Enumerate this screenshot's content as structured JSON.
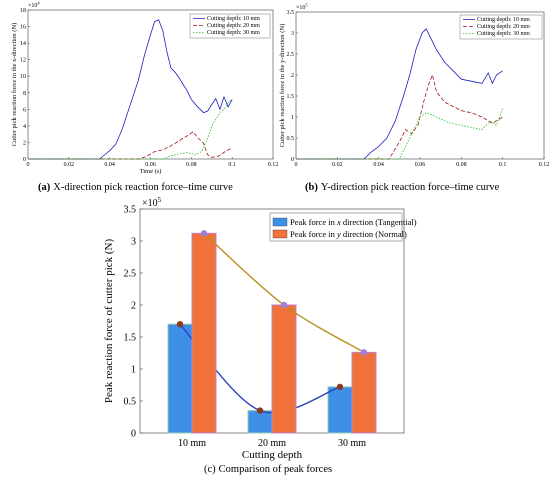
{
  "chart_data": [
    {
      "type": "line",
      "panel_label": "(a)",
      "caption": "X-direction pick reaction force–time curve",
      "xlabel": "Time (s)",
      "ylabel": "Cutter pick reaction force in the x-direction (N)",
      "y_exponent": "×10",
      "y_exponent_power": "4",
      "xlim": [
        0,
        0.12
      ],
      "ylim": [
        0,
        18
      ],
      "xticks": [
        "0",
        "0.02",
        "0.04",
        "0.06",
        "0.08",
        "0.1",
        "0.12"
      ],
      "yticks": [
        "0",
        "2",
        "4",
        "6",
        "8",
        "10",
        "12",
        "14",
        "16",
        "18"
      ],
      "legend_position": "top-right",
      "series": [
        {
          "name": "Cutting depth: 10 mm",
          "color": "#2020c0",
          "dash": "solid",
          "x": [
            0,
            0.035,
            0.038,
            0.04,
            0.043,
            0.046,
            0.05,
            0.054,
            0.057,
            0.06,
            0.062,
            0.064,
            0.066,
            0.068,
            0.07,
            0.072,
            0.074,
            0.076,
            0.078,
            0.08,
            0.083,
            0.086,
            0.088,
            0.09,
            0.092,
            0.094,
            0.096,
            0.098,
            0.1
          ],
          "y": [
            0,
            0,
            0.6,
            1.0,
            1.8,
            3.5,
            6.5,
            9.5,
            12.5,
            15.0,
            16.6,
            16.8,
            15.5,
            13.0,
            11.0,
            10.5,
            9.8,
            9.0,
            8.2,
            7.2,
            6.3,
            5.6,
            5.8,
            6.6,
            7.3,
            6.0,
            7.5,
            6.3,
            7.2
          ]
        },
        {
          "name": "Cutting depth: 20 mm",
          "color": "#a01818",
          "dash": "4,2",
          "x": [
            0,
            0.054,
            0.058,
            0.062,
            0.066,
            0.07,
            0.074,
            0.078,
            0.081,
            0.083,
            0.086,
            0.088,
            0.09,
            0.093,
            0.096,
            0.098,
            0.1
          ],
          "y": [
            0,
            0,
            0.3,
            0.9,
            1.1,
            1.6,
            2.2,
            2.8,
            3.3,
            2.6,
            1.9,
            0.5,
            0.2,
            0.3,
            0.8,
            1.1,
            1.3
          ]
        },
        {
          "name": "Cutting depth: 30 mm",
          "color": "#20c020",
          "dash": "1.5,1.5",
          "x": [
            0,
            0.066,
            0.07,
            0.074,
            0.078,
            0.082,
            0.085,
            0.088,
            0.09,
            0.092,
            0.094,
            0.096,
            0.098,
            0.1
          ],
          "y": [
            0,
            0,
            0.4,
            0.6,
            0.8,
            0.5,
            0.9,
            2.5,
            4.0,
            4.8,
            5.6,
            6.0,
            6.8,
            7.2
          ]
        }
      ]
    },
    {
      "type": "line",
      "panel_label": "(b)",
      "caption": "Y-direction pick reaction force–time curve",
      "ylabel": "Cutter pick reaction force in the y-direction (N)",
      "y_exponent": "×10",
      "y_exponent_power": "5",
      "xlim": [
        0,
        0.12
      ],
      "ylim": [
        0,
        3.5
      ],
      "xticks": [
        "0",
        "0.02",
        "0.04",
        "0.06",
        "0.08",
        "0.1",
        "0.12"
      ],
      "yticks": [
        "0",
        "0.5",
        "1",
        "1.5",
        "2",
        "2.5",
        "3",
        "3.5"
      ],
      "legend_position": "top-right",
      "series": [
        {
          "name": "Cutting depth: 10 mm",
          "color": "#2020c0",
          "dash": "solid",
          "x": [
            0,
            0.033,
            0.036,
            0.04,
            0.044,
            0.048,
            0.052,
            0.055,
            0.058,
            0.061,
            0.063,
            0.065,
            0.068,
            0.072,
            0.076,
            0.08,
            0.085,
            0.09,
            0.093,
            0.095,
            0.097,
            0.1
          ],
          "y": [
            0,
            0,
            0.15,
            0.3,
            0.5,
            0.9,
            1.5,
            2.0,
            2.6,
            3.0,
            3.1,
            2.9,
            2.6,
            2.3,
            2.1,
            1.9,
            1.85,
            1.8,
            2.05,
            1.8,
            2.0,
            2.1
          ]
        },
        {
          "name": "Cutting depth: 20 mm",
          "color": "#a01818",
          "dash": "4,2",
          "x": [
            0,
            0.045,
            0.05,
            0.053,
            0.056,
            0.059,
            0.062,
            0.064,
            0.066,
            0.068,
            0.072,
            0.076,
            0.08,
            0.085,
            0.09,
            0.095,
            0.1
          ],
          "y": [
            0,
            0,
            0.4,
            0.7,
            0.6,
            0.8,
            1.4,
            1.75,
            2.0,
            1.6,
            1.35,
            1.25,
            1.15,
            1.1,
            1.0,
            0.85,
            1.0
          ]
        },
        {
          "name": "Cutting depth: 30 mm",
          "color": "#20c020",
          "dash": "1.5,1.5",
          "x": [
            0,
            0.05,
            0.054,
            0.057,
            0.06,
            0.063,
            0.066,
            0.07,
            0.075,
            0.08,
            0.085,
            0.09,
            0.094,
            0.097,
            0.1
          ],
          "y": [
            0,
            0,
            0.4,
            0.7,
            1.0,
            1.1,
            1.05,
            0.95,
            0.85,
            0.8,
            0.75,
            0.7,
            0.9,
            0.8,
            1.2
          ]
        }
      ]
    },
    {
      "type": "bar",
      "panel_label": "(c)",
      "caption": "Comparison of peak forces",
      "xlabel": "Cutting depth",
      "ylabel": "Peak reaction force of cutter pick (N)",
      "y_exponent": "×10",
      "y_exponent_power": "5",
      "categories": [
        "10 mm",
        "20 mm",
        "30 mm"
      ],
      "ylim": [
        0,
        3.5
      ],
      "yticks": [
        "0",
        "0.5",
        "1",
        "1.5",
        "2",
        "2.5",
        "3",
        "3.5"
      ],
      "legend_position": "top-right",
      "series": [
        {
          "name_parts": [
            "Peak force in ",
            "x",
            " direction (Tangential)"
          ],
          "color": "#3d8fe8",
          "values": [
            1.7,
            0.35,
            0.72
          ]
        },
        {
          "name_parts": [
            "Peak force in ",
            "y",
            " direction (Normal)"
          ],
          "color": "#f0713a",
          "values": [
            3.12,
            2.0,
            1.26
          ]
        }
      ]
    }
  ]
}
